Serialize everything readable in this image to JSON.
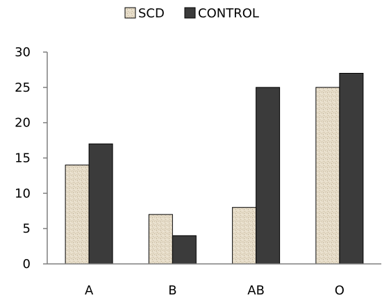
{
  "chart_data": {
    "type": "bar",
    "title": "",
    "xlabel": "",
    "ylabel": "",
    "categories": [
      "A",
      "B",
      "AB",
      "O"
    ],
    "series": [
      {
        "name": "SCD",
        "values": [
          14,
          7,
          8,
          25
        ],
        "color": "#e3d9c4",
        "pattern": "speckled"
      },
      {
        "name": "CONTROL",
        "values": [
          17,
          4,
          25,
          27
        ],
        "color": "#3b3b3b",
        "pattern": "solid"
      }
    ],
    "ylim": [
      0,
      30
    ],
    "yticks": [
      0,
      5,
      10,
      15,
      20,
      25,
      30
    ],
    "grid": false,
    "legend_position": "top-center"
  }
}
